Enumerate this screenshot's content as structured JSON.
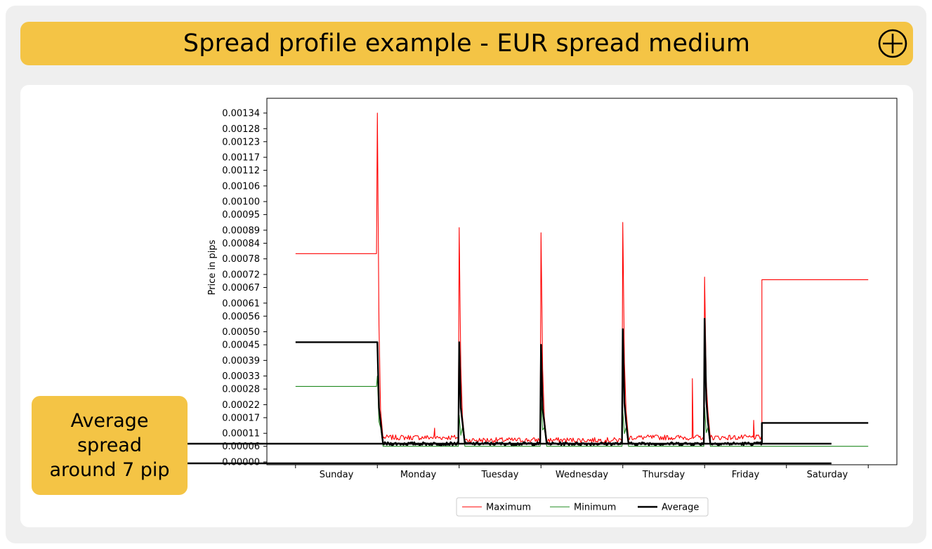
{
  "header": {
    "title": "Spread profile example - EUR spread medium",
    "expand_icon": "plus-circle-icon"
  },
  "callout": {
    "text": "Average spread around 7 pip"
  },
  "colors": {
    "accent": "#f4c445",
    "maximum": "#ff0000",
    "minimum": "#228b22",
    "average": "#000000"
  },
  "chart_data": {
    "type": "line",
    "title": "",
    "xlabel": "",
    "ylabel": "Price in pips",
    "categories": [
      "Sunday",
      "Monday",
      "Tuesday",
      "Wednesday",
      "Thursday",
      "Friday",
      "Saturday"
    ],
    "x_range": [
      -0.35,
      7.35
    ],
    "y_ticks": [
      "0.00000",
      "0.00006",
      "0.00011",
      "0.00017",
      "0.00022",
      "0.00028",
      "0.00033",
      "0.00039",
      "0.00045",
      "0.00050",
      "0.00056",
      "0.00061",
      "0.00067",
      "0.00072",
      "0.00078",
      "0.00084",
      "0.00089",
      "0.00095",
      "0.00100",
      "0.00106",
      "0.00112",
      "0.00117",
      "0.00123",
      "0.00128",
      "0.00134"
    ],
    "ylim": [
      0,
      0.00139
    ],
    "grid": false,
    "legend": {
      "placement": "bottom-center",
      "entries": [
        "Maximum",
        "Minimum",
        "Average"
      ]
    },
    "series": [
      {
        "name": "Maximum",
        "color": "#ff0000",
        "base": [
          0.0008,
          9e-05,
          8e-05,
          8e-05,
          9e-05,
          9e-05,
          8e-05,
          0.0007
        ],
        "spikes": [
          [
            1.0,
            0.00134
          ],
          [
            2.0,
            0.0009
          ],
          [
            3.0,
            0.00088
          ],
          [
            4.0,
            0.00092
          ],
          [
            5.0,
            0.00071
          ]
        ],
        "extra_spikes": [
          [
            4.85,
            0.00032
          ],
          [
            1.7,
            0.00013
          ],
          [
            5.6,
            0.00016
          ]
        ]
      },
      {
        "name": "Minimum",
        "color": "#228b22",
        "base": [
          0.00029,
          6e-05,
          6e-05,
          6e-05,
          6e-05,
          6e-05,
          6e-05,
          6e-05
        ],
        "spikes": [
          [
            1.0,
            0.00033
          ],
          [
            2.0,
            0.00018
          ],
          [
            3.0,
            0.00024
          ],
          [
            4.0,
            0.0002
          ],
          [
            5.0,
            0.00021
          ]
        ],
        "extra_spikes": []
      },
      {
        "name": "Average",
        "color": "#000000",
        "base": [
          0.00046,
          7e-05,
          7e-05,
          7e-05,
          7e-05,
          7e-05,
          7e-05,
          0.00015
        ],
        "spikes": [
          [
            1.0,
            0.00046
          ],
          [
            2.0,
            0.00046
          ],
          [
            3.0,
            0.00045
          ],
          [
            4.0,
            0.00051
          ],
          [
            5.0,
            0.00055
          ]
        ],
        "extra_spikes": []
      }
    ]
  }
}
